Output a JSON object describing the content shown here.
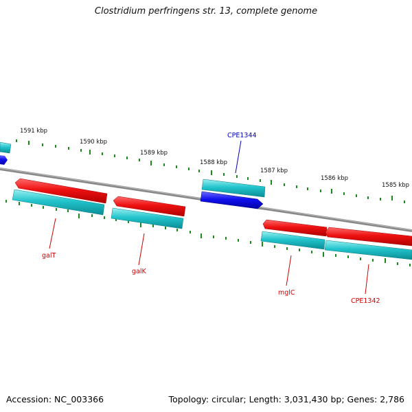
{
  "title": "Clostridium perfringens str. 13, complete genome",
  "footer": {
    "accession": "Accession: NC_003366",
    "summary": "Topology: circular; Length: 3,031,430 bp; Genes: 2,786"
  },
  "ticks": [
    {
      "label": "1591 kbp"
    },
    {
      "label": "1590 kbp"
    },
    {
      "label": "1589 kbp"
    },
    {
      "label": "1588 kbp"
    },
    {
      "label": "1587 kbp"
    },
    {
      "label": "1586 kbp"
    },
    {
      "label": "1585 kbp"
    }
  ],
  "gene_labels": [
    {
      "text": "galT",
      "color": "#cc0000"
    },
    {
      "text": "galK",
      "color": "#cc0000"
    },
    {
      "text": "CPE1344",
      "color": "#0000bb"
    },
    {
      "text": "mglC",
      "color": "#cc0000"
    },
    {
      "text": "CPE1342",
      "color": "#cc0000"
    }
  ],
  "colors": {
    "backbone": "#808080",
    "forward_gene": "#ee1111",
    "cds": "#22c4cc",
    "reverse_gene": "#1111ee",
    "tick": "#1a8a1a",
    "rna_gene_label": "#cc0000",
    "hypothetical_label": "#0000bb"
  }
}
